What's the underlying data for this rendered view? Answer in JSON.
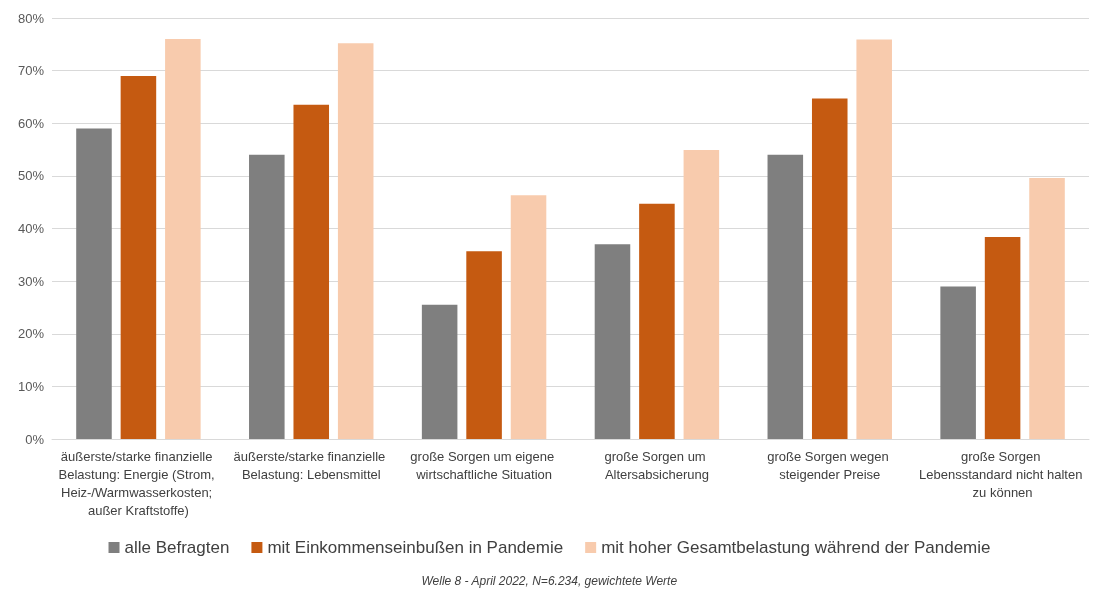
{
  "chart_data": {
    "type": "bar",
    "categories": [
      "äußerste/starke finanzielle Belastung: Energie (Strom, Heiz-/Warmwasserkosten; außer Kraftstoffe)",
      "äußerste/starke finanzielle Belastung: Lebensmittel",
      "große Sorgen um eigene wirtschaftliche Situation",
      "große Sorgen um Altersabsicherung",
      "große Sorgen wegen steigender Preise",
      "große Sorgen Lebensstandard nicht halten zu können"
    ],
    "series": [
      {
        "name": "alle Befragten",
        "color": "#7f7f7f",
        "values": [
          59,
          54,
          25.5,
          37,
          54,
          29
        ]
      },
      {
        "name": "mit Einkommenseinbußen in Pandemie",
        "color": "#c55a11",
        "values": [
          69,
          63.5,
          35.7,
          44.7,
          64.7,
          38.4
        ]
      },
      {
        "name": "mit hoher Gesamtbelastung während der Pandemie",
        "color": "#f8cbad",
        "values": [
          76,
          75.2,
          46.3,
          54.9,
          75.9,
          49.6
        ]
      }
    ],
    "ylim": [
      0,
      80
    ],
    "yticks": [
      {
        "value": 0,
        "label": "0%"
      },
      {
        "value": 10,
        "label": "10%"
      },
      {
        "value": 20,
        "label": "20%"
      },
      {
        "value": 30,
        "label": "30%"
      },
      {
        "value": 40,
        "label": "40%"
      },
      {
        "value": 50,
        "label": "50%"
      },
      {
        "value": 60,
        "label": "60%"
      },
      {
        "value": 70,
        "label": "70%"
      },
      {
        "value": 80,
        "label": "80%"
      }
    ],
    "grid": "y",
    "legend": "bottom",
    "annotations": [
      "Welle 8 - April 2022, N=6.234, gewichtete Werte"
    ]
  }
}
